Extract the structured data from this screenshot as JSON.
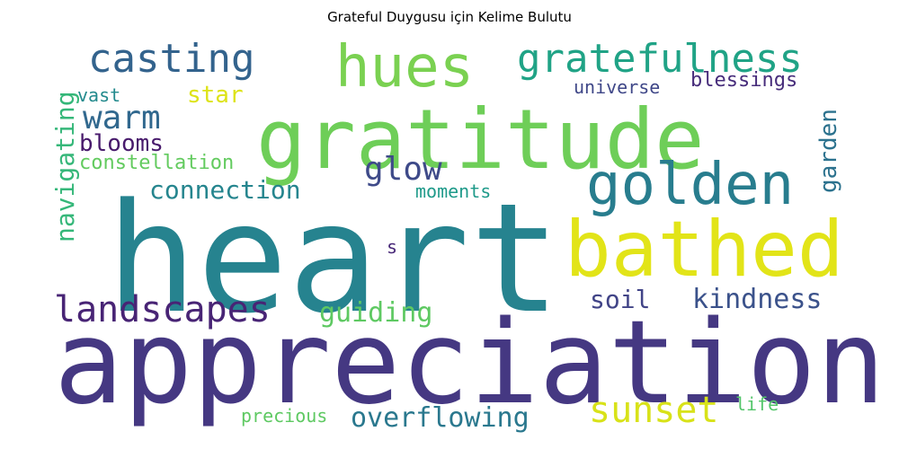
{
  "chart_data": {
    "type": "wordcloud",
    "title": "Grateful Duygusu için Kelime Bulutu",
    "words": [
      {
        "text": "heart",
        "weight": 1.0,
        "color": "#26838f",
        "rotated": false
      },
      {
        "text": "appreciation",
        "weight": 0.97,
        "color": "#453882",
        "rotated": false
      },
      {
        "text": "gratitude",
        "weight": 0.72,
        "color": "#6ece58",
        "rotated": false
      },
      {
        "text": "bathed",
        "weight": 0.52,
        "color": "#e2e418",
        "rotated": false
      },
      {
        "text": "golden",
        "weight": 0.4,
        "color": "#287d8e",
        "rotated": false
      },
      {
        "text": "hues",
        "weight": 0.4,
        "color": "#7ad151",
        "rotated": false
      },
      {
        "text": "gratefulness",
        "weight": 0.27,
        "color": "#20a386",
        "rotated": false
      },
      {
        "text": "casting",
        "weight": 0.27,
        "color": "#33638d",
        "rotated": false
      },
      {
        "text": "landscapes",
        "weight": 0.26,
        "color": "#482475",
        "rotated": false
      },
      {
        "text": "sunset",
        "weight": 0.26,
        "color": "#d8e219",
        "rotated": false
      },
      {
        "text": "warm",
        "weight": 0.23,
        "color": "#31688e",
        "rotated": false
      },
      {
        "text": "glow",
        "weight": 0.23,
        "color": "#3e4a89",
        "rotated": false
      },
      {
        "text": "navigating",
        "weight": 0.21,
        "color": "#35b779",
        "rotated": true
      },
      {
        "text": "kindness",
        "weight": 0.19,
        "color": "#3b528b",
        "rotated": false
      },
      {
        "text": "overflowing",
        "weight": 0.19,
        "color": "#2a788e",
        "rotated": false
      },
      {
        "text": "connection",
        "weight": 0.18,
        "color": "#25858e",
        "rotated": false
      },
      {
        "text": "soil",
        "weight": 0.18,
        "color": "#414487",
        "rotated": false
      },
      {
        "text": "blooms",
        "weight": 0.18,
        "color": "#481a6c",
        "rotated": false
      },
      {
        "text": "guiding",
        "weight": 0.17,
        "color": "#5ec962",
        "rotated": false
      },
      {
        "text": "garden",
        "weight": 0.16,
        "color": "#2c728e",
        "rotated": true
      },
      {
        "text": "star",
        "weight": 0.15,
        "color": "#dde318",
        "rotated": false
      },
      {
        "text": "blessings",
        "weight": 0.13,
        "color": "#472d7b",
        "rotated": false
      },
      {
        "text": "constellation",
        "weight": 0.13,
        "color": "#63cb5f",
        "rotated": false
      },
      {
        "text": "universe",
        "weight": 0.12,
        "color": "#3f4788",
        "rotated": false
      },
      {
        "text": "precious",
        "weight": 0.12,
        "color": "#5ec962",
        "rotated": false
      },
      {
        "text": "moments",
        "weight": 0.12,
        "color": "#1f9a8a",
        "rotated": false
      },
      {
        "text": "vast",
        "weight": 0.11,
        "color": "#238a8d",
        "rotated": false
      },
      {
        "text": "life",
        "weight": 0.11,
        "color": "#52c569",
        "rotated": false
      },
      {
        "text": "s",
        "weight": 0.11,
        "color": "#482878",
        "rotated": false
      }
    ]
  }
}
